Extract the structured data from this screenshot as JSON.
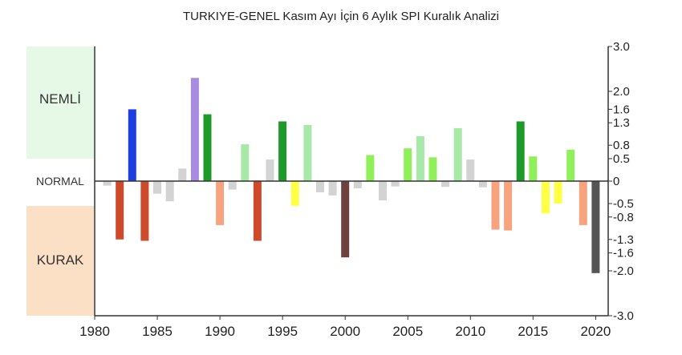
{
  "title": "TURKIYE-GENEL Kasım Ayı İçin 6 Aylık SPI Kuralık Analizi",
  "zones": {
    "wet_label": "NEMLİ",
    "normal_label": "NORMAL",
    "dry_label": "KURAK"
  },
  "colors": {
    "wet_zone": "#e6f9e6",
    "dry_zone": "#fbe0c6",
    "axis": "#333333"
  },
  "chart_data": {
    "type": "bar",
    "title": "TURKIYE-GENEL Kasım Ayı İçin 6 Aylık SPI Kuralık Analizi",
    "xlabel": "",
    "ylabel": "",
    "ylim": [
      -3.0,
      3.0
    ],
    "xlim": [
      1980,
      2021
    ],
    "x_ticks": [
      "1980",
      "1985",
      "1990",
      "1995",
      "2000",
      "2005",
      "2010",
      "2015",
      "2020"
    ],
    "y_ticks": [
      {
        "value": 3.0,
        "label": "3.0"
      },
      {
        "value": 2.0,
        "label": "2.0"
      },
      {
        "value": 1.6,
        "label": "1.6"
      },
      {
        "value": 1.3,
        "label": "1.3"
      },
      {
        "value": 0.8,
        "label": "0.8"
      },
      {
        "value": 0.5,
        "label": "0.5"
      },
      {
        "value": 0,
        "label": "0"
      },
      {
        "value": -0.5,
        "label": "-0.5"
      },
      {
        "value": -0.8,
        "label": "-0.8"
      },
      {
        "value": -1.3,
        "label": "-1.3"
      },
      {
        "value": -1.6,
        "label": "-1.6"
      },
      {
        "value": -2.0,
        "label": "-2.0"
      },
      {
        "value": -3.0,
        "label": "-3.0"
      }
    ],
    "grid": false,
    "legend": "none",
    "bars": [
      {
        "year": 1981,
        "value": -0.1,
        "color": "#d3d3d3"
      },
      {
        "year": 1982,
        "value": -1.3,
        "color": "#cd4a2a"
      },
      {
        "year": 1983,
        "value": 1.6,
        "color": "#1f3ee0"
      },
      {
        "year": 1984,
        "value": -1.33,
        "color": "#cd4a2a"
      },
      {
        "year": 1985,
        "value": -0.28,
        "color": "#d3d3d3"
      },
      {
        "year": 1986,
        "value": -0.45,
        "color": "#d3d3d3"
      },
      {
        "year": 1987,
        "value": 0.28,
        "color": "#d3d3d3"
      },
      {
        "year": 1988,
        "value": 2.3,
        "color": "#a98be0"
      },
      {
        "year": 1989,
        "value": 1.49,
        "color": "#1e9a2a"
      },
      {
        "year": 1990,
        "value": -0.98,
        "color": "#f7a37e"
      },
      {
        "year": 1991,
        "value": -0.19,
        "color": "#d3d3d3"
      },
      {
        "year": 1992,
        "value": 0.82,
        "color": "#a8e8a8"
      },
      {
        "year": 1993,
        "value": -1.33,
        "color": "#cd4a2a"
      },
      {
        "year": 1994,
        "value": 0.48,
        "color": "#d3d3d3"
      },
      {
        "year": 1995,
        "value": 1.33,
        "color": "#1e9a2a"
      },
      {
        "year": 1996,
        "value": -0.55,
        "color": "#ffff44"
      },
      {
        "year": 1997,
        "value": 1.25,
        "color": "#a8e8a8"
      },
      {
        "year": 1998,
        "value": -0.25,
        "color": "#d3d3d3"
      },
      {
        "year": 1999,
        "value": -0.32,
        "color": "#d3d3d3"
      },
      {
        "year": 2000,
        "value": -1.7,
        "color": "#6e4040"
      },
      {
        "year": 2001,
        "value": -0.16,
        "color": "#d3d3d3"
      },
      {
        "year": 2002,
        "value": 0.58,
        "color": "#8ff05a"
      },
      {
        "year": 2003,
        "value": -0.43,
        "color": "#d3d3d3"
      },
      {
        "year": 2004,
        "value": -0.12,
        "color": "#d3d3d3"
      },
      {
        "year": 2005,
        "value": 0.73,
        "color": "#8ff05a"
      },
      {
        "year": 2006,
        "value": 1.0,
        "color": "#a8e8a8"
      },
      {
        "year": 2007,
        "value": 0.53,
        "color": "#8ff05a"
      },
      {
        "year": 2008,
        "value": -0.13,
        "color": "#d3d3d3"
      },
      {
        "year": 2009,
        "value": 1.18,
        "color": "#a8e8a8"
      },
      {
        "year": 2010,
        "value": 0.48,
        "color": "#d3d3d3"
      },
      {
        "year": 2011,
        "value": -0.14,
        "color": "#d3d3d3"
      },
      {
        "year": 2012,
        "value": -1.08,
        "color": "#f7a37e"
      },
      {
        "year": 2013,
        "value": -1.1,
        "color": "#f7a37e"
      },
      {
        "year": 2014,
        "value": 1.33,
        "color": "#1e9a2a"
      },
      {
        "year": 2015,
        "value": 0.55,
        "color": "#8ff05a"
      },
      {
        "year": 2016,
        "value": -0.72,
        "color": "#ffff44"
      },
      {
        "year": 2017,
        "value": -0.5,
        "color": "#ffff44"
      },
      {
        "year": 2018,
        "value": 0.7,
        "color": "#8ff05a"
      },
      {
        "year": 2019,
        "value": -0.98,
        "color": "#f7a37e"
      },
      {
        "year": 2020,
        "value": -2.05,
        "color": "#555555"
      }
    ]
  }
}
